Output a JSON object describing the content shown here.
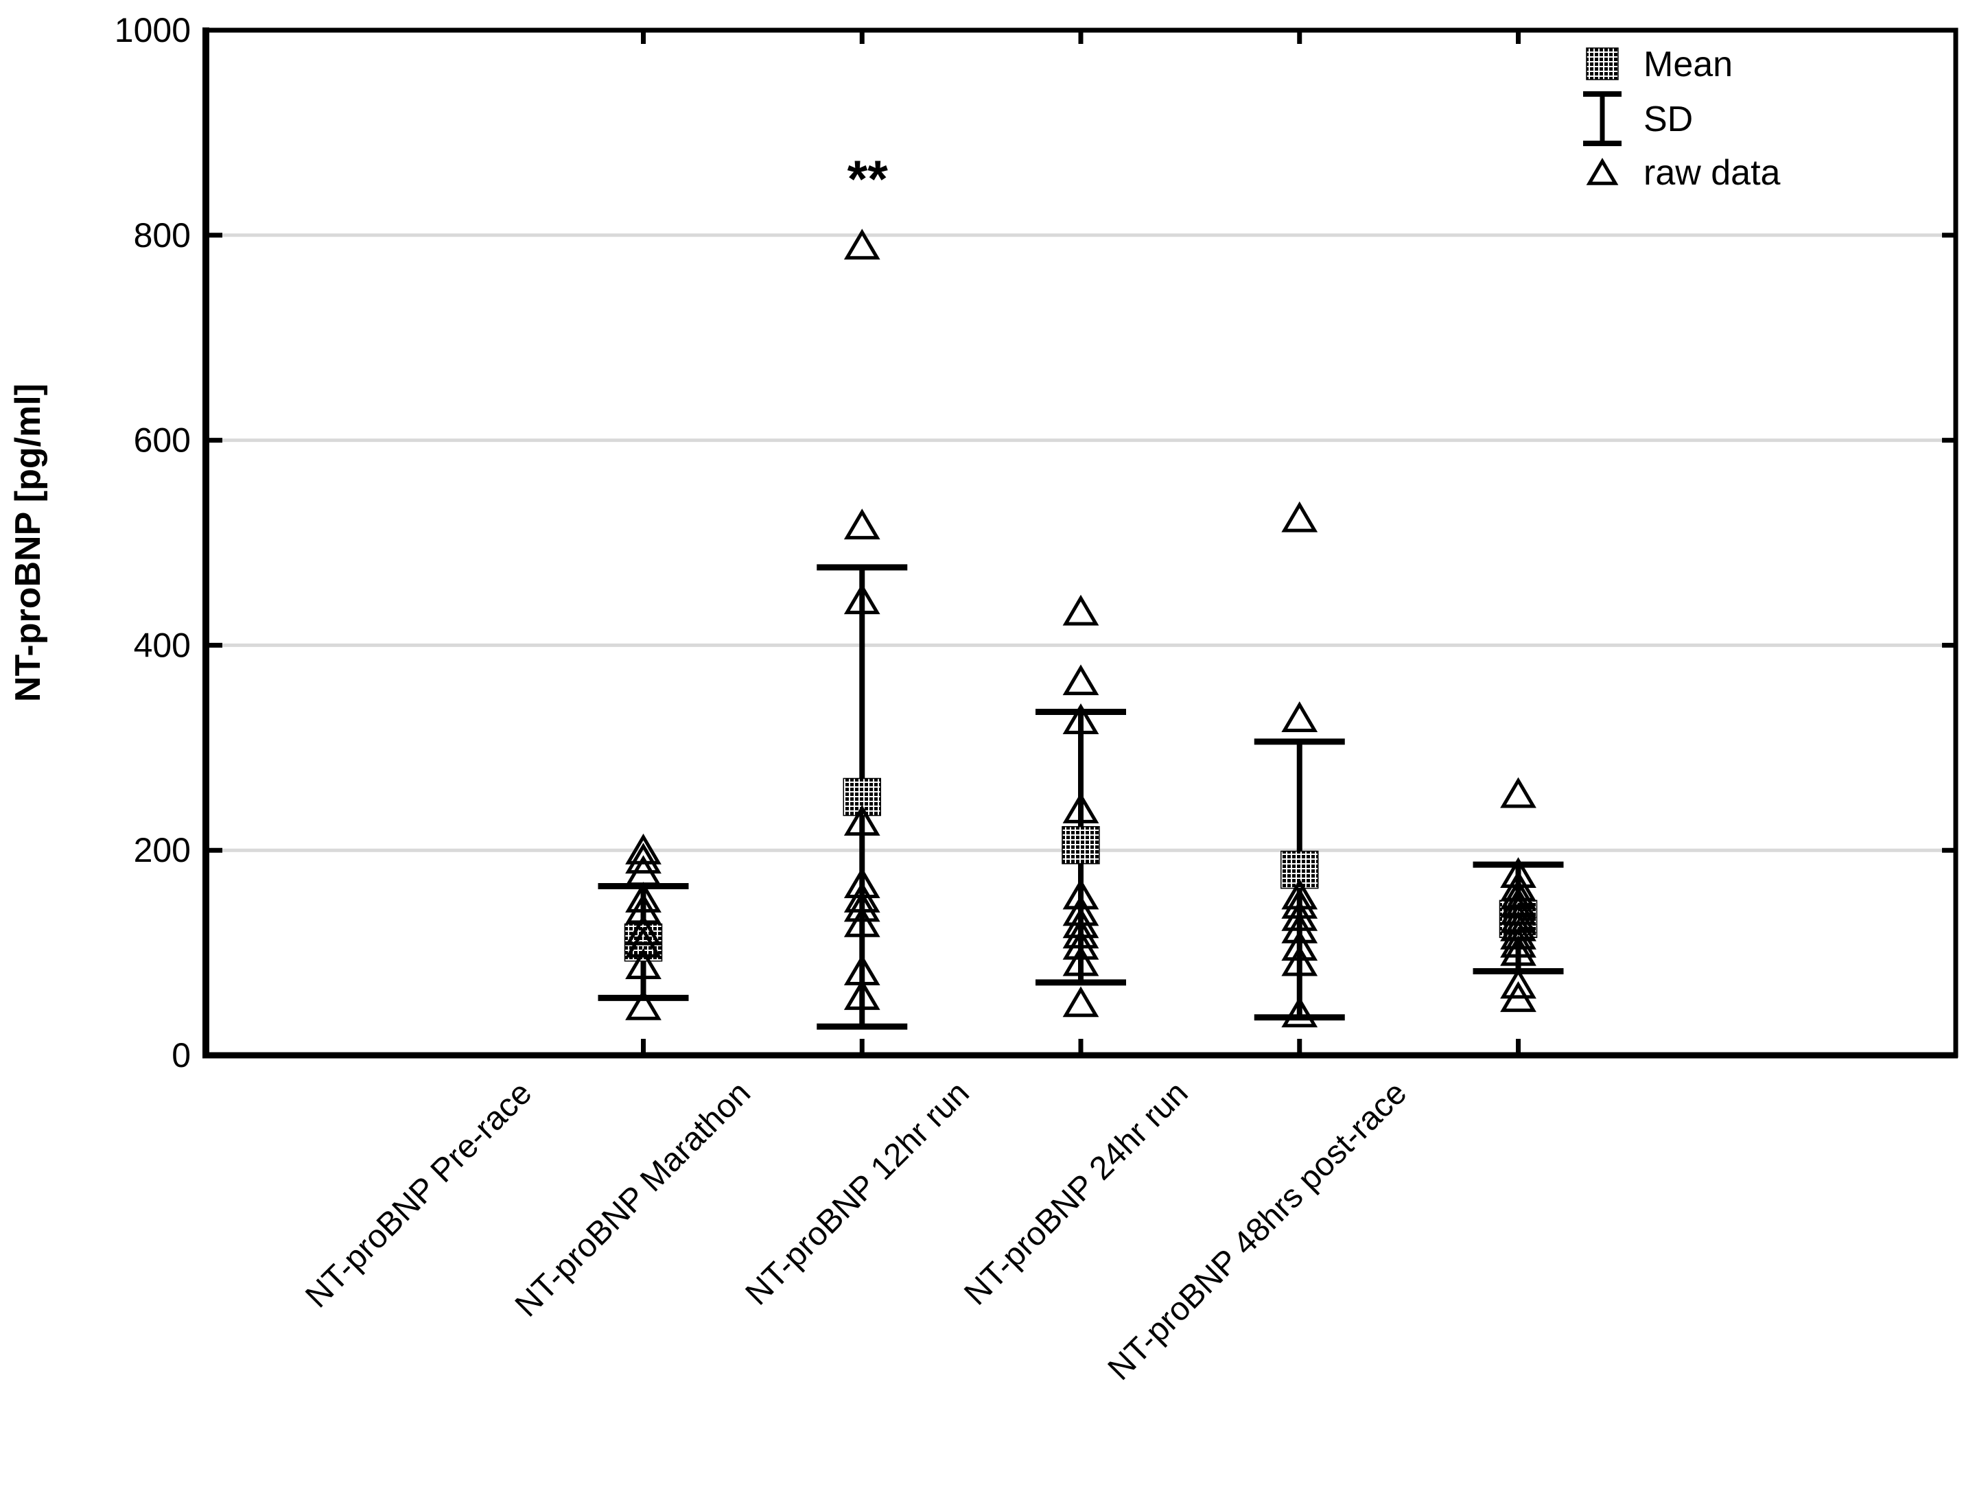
{
  "colors": {
    "foreground": "#000000",
    "grid": "#d9d9d9",
    "background": "#ffffff"
  },
  "chart_data": {
    "type": "scatter",
    "title": "",
    "xlabel": "",
    "ylabel": "NT-proBNP [pg/ml]",
    "ylim": [
      0,
      1000
    ],
    "yticks": [
      0,
      200,
      400,
      600,
      800,
      1000
    ],
    "grid": "horizontal gridlines at 200,400,600,800",
    "legend_position": "top-right inside plot",
    "legend": [
      {
        "symbol": "mean-square-pattern",
        "label": "Mean"
      },
      {
        "symbol": "sd-errorbar",
        "label": "SD"
      },
      {
        "symbol": "hollow-triangle",
        "label": "raw data"
      }
    ],
    "annotation": {
      "text": "**",
      "group_index": 1,
      "meaning": "significance marker above Marathon group"
    },
    "categories": [
      "NT-proBNP Pre-race",
      "NT-proBNP Marathon",
      "NT-proBNP 12hr run",
      "NT-proBNP 24hr run",
      "NT-proBNP 48hrs post-race"
    ],
    "groups": [
      {
        "label": "NT-proBNP Pre-race",
        "mean": 110,
        "sd_low": 56,
        "sd_high": 165,
        "raw": [
          199,
          190,
          178,
          152,
          141,
          120,
          108,
          87,
          47
        ]
      },
      {
        "label": "NT-proBNP Marathon",
        "mean": 252,
        "sd_low": 28,
        "sd_high": 476,
        "raw": [
          789,
          516,
          443,
          227,
          166,
          152,
          143,
          128,
          81,
          57
        ]
      },
      {
        "label": "NT-proBNP 12hr run",
        "mean": 205,
        "sd_low": 71,
        "sd_high": 335,
        "raw": [
          432,
          364,
          326,
          239,
          155,
          139,
          127,
          117,
          106,
          90,
          50
        ]
      },
      {
        "label": "NT-proBNP 24hr run",
        "mean": 181,
        "sd_low": 37,
        "sd_high": 306,
        "raw": [
          523,
          328,
          155,
          146,
          134,
          122,
          105,
          90,
          40
        ]
      },
      {
        "label": "NT-proBNP 48hrs post-race",
        "mean": 133,
        "sd_low": 82,
        "sd_high": 186,
        "raw": [
          254,
          176,
          163,
          155,
          147,
          140,
          132,
          124,
          116,
          108,
          100,
          68,
          55
        ]
      }
    ]
  }
}
